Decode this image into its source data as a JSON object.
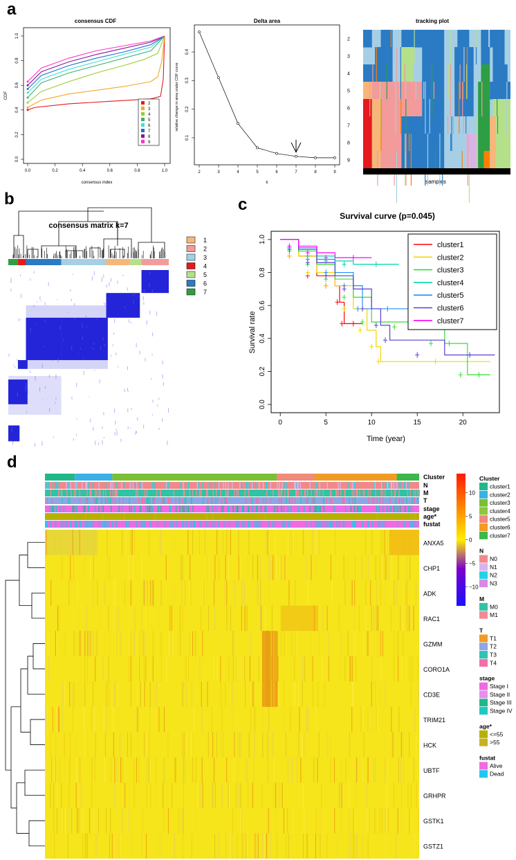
{
  "panel_labels": {
    "a": "a",
    "b": "b",
    "c": "c",
    "d": "d"
  },
  "chart_data": [
    {
      "type": "line",
      "title": "consensus CDF",
      "xlabel": "consensus index",
      "ylabel": "CDF",
      "xticks": [
        "0.0",
        "0.2",
        "0.4",
        "0.6",
        "0.8",
        "1.0"
      ],
      "yticks": [
        "0.0",
        "0.2",
        "0.4",
        "0.6",
        "0.8",
        "1.0"
      ],
      "xlim": [
        0,
        1
      ],
      "ylim": [
        0,
        1
      ],
      "legend_position": "bottom-right",
      "series": [
        {
          "name": "2",
          "color": "#e41a1c",
          "x": [
            0,
            0.05,
            0.3,
            0.6,
            0.9,
            0.97,
            0.99,
            1.0
          ],
          "y": [
            0.4,
            0.42,
            0.45,
            0.47,
            0.49,
            0.51,
            0.65,
            1.0
          ]
        },
        {
          "name": "3",
          "color": "#f5a623",
          "x": [
            0,
            0.1,
            0.3,
            0.5,
            0.7,
            0.9,
            0.95,
            0.98,
            1.0
          ],
          "y": [
            0.42,
            0.48,
            0.53,
            0.56,
            0.59,
            0.63,
            0.67,
            0.8,
            1.0
          ]
        },
        {
          "name": "4",
          "color": "#9acd32",
          "x": [
            0,
            0.1,
            0.3,
            0.5,
            0.7,
            0.85,
            0.95,
            1.0
          ],
          "y": [
            0.46,
            0.55,
            0.63,
            0.7,
            0.76,
            0.81,
            0.86,
            1.0
          ]
        },
        {
          "name": "5",
          "color": "#3cb371",
          "x": [
            0,
            0.1,
            0.3,
            0.5,
            0.7,
            0.9,
            1.0
          ],
          "y": [
            0.5,
            0.62,
            0.7,
            0.76,
            0.82,
            0.88,
            1.0
          ]
        },
        {
          "name": "6",
          "color": "#40e0d0",
          "x": [
            0,
            0.1,
            0.3,
            0.5,
            0.7,
            0.9,
            1.0
          ],
          "y": [
            0.54,
            0.65,
            0.73,
            0.79,
            0.85,
            0.91,
            1.0
          ]
        },
        {
          "name": "7",
          "color": "#1e6fcf",
          "x": [
            0,
            0.1,
            0.3,
            0.5,
            0.7,
            0.9,
            1.0
          ],
          "y": [
            0.57,
            0.68,
            0.76,
            0.82,
            0.87,
            0.93,
            1.0
          ]
        },
        {
          "name": "8",
          "color": "#8b1a8b",
          "x": [
            0,
            0.1,
            0.3,
            0.5,
            0.7,
            0.9,
            1.0
          ],
          "y": [
            0.6,
            0.71,
            0.79,
            0.85,
            0.9,
            0.95,
            1.0
          ]
        },
        {
          "name": "9",
          "color": "#ff33cc",
          "x": [
            0,
            0.1,
            0.3,
            0.5,
            0.7,
            0.9,
            1.0
          ],
          "y": [
            0.63,
            0.74,
            0.82,
            0.88,
            0.92,
            0.96,
            1.0
          ]
        }
      ]
    },
    {
      "type": "line",
      "title": "Delta area",
      "xlabel": "k",
      "ylabel": "relative change in area under CDF curve",
      "x": [
        2,
        3,
        4,
        5,
        6,
        7,
        8,
        9
      ],
      "y": [
        0.47,
        0.31,
        0.15,
        0.065,
        0.045,
        0.035,
        0.03,
        0.03
      ],
      "xlim": [
        2,
        9
      ],
      "ylim": [
        0.02,
        0.48
      ],
      "yticks": [
        "0.1",
        "0.2",
        "0.3",
        "0.4"
      ],
      "annotation": "arrow at k=7"
    },
    {
      "type": "heatmap",
      "title": "tracking plot",
      "xlabel": "samples",
      "rows": [
        "2",
        "3",
        "4",
        "5",
        "6",
        "7",
        "8",
        "9"
      ]
    },
    {
      "type": "heatmap",
      "title": "consensus matrix k=7",
      "legend": [
        "1",
        "2",
        "3",
        "4",
        "5",
        "6",
        "7"
      ],
      "legend_colors": [
        "#f7b67a",
        "#f39a9a",
        "#a6cfe5",
        "#e41a1c",
        "#b5e08a",
        "#2a7bc4",
        "#2e9e44"
      ]
    },
    {
      "type": "line",
      "title": "Survival curve (p=0.045)",
      "xlabel": "Time (year)",
      "ylabel": "Survival rate",
      "xlim": [
        -1,
        24
      ],
      "ylim": [
        -0.05,
        1.05
      ],
      "xticks": [
        0,
        5,
        10,
        15,
        20
      ],
      "yticks": [
        "0.0",
        "0.2",
        "0.4",
        "0.6",
        "0.8",
        "1.0"
      ],
      "legend_position": "top-right",
      "series": [
        {
          "name": "cluster1",
          "color": "#ff0000",
          "x": [
            0,
            2,
            4,
            6,
            6.5,
            7,
            9
          ],
          "y": [
            1,
            0.9,
            0.78,
            0.72,
            0.62,
            0.49,
            0.49
          ]
        },
        {
          "name": "cluster2",
          "color": "#f2d600",
          "x": [
            0,
            2,
            4,
            6,
            8,
            9.5,
            10.5,
            11,
            23
          ],
          "y": [
            1,
            0.9,
            0.8,
            0.72,
            0.58,
            0.45,
            0.35,
            0.26,
            0.26
          ]
        },
        {
          "name": "cluster3",
          "color": "#33dd33",
          "x": [
            0,
            2,
            4,
            6,
            8,
            10,
            15,
            18,
            19,
            20.5,
            23
          ],
          "y": [
            1,
            0.93,
            0.85,
            0.76,
            0.65,
            0.5,
            0.47,
            0.37,
            0.37,
            0.18,
            0.18
          ]
        },
        {
          "name": "cluster4",
          "color": "#00d5a8",
          "x": [
            0,
            2,
            4,
            6,
            8,
            13
          ],
          "y": [
            1,
            0.95,
            0.9,
            0.87,
            0.85,
            0.85
          ]
        },
        {
          "name": "cluster5",
          "color": "#1e90ff",
          "x": [
            0,
            2,
            4,
            6,
            8,
            9,
            14.5
          ],
          "y": [
            1,
            0.95,
            0.88,
            0.8,
            0.72,
            0.58,
            0.58
          ]
        },
        {
          "name": "cluster6",
          "color": "#5b3fd4",
          "x": [
            0,
            2,
            4,
            6,
            8,
            10,
            11,
            12,
            18,
            23.5
          ],
          "y": [
            1,
            0.94,
            0.86,
            0.78,
            0.7,
            0.58,
            0.48,
            0.39,
            0.3,
            0.3
          ]
        },
        {
          "name": "cluster7",
          "color": "#ff00ff",
          "x": [
            0,
            2,
            4,
            6,
            10
          ],
          "y": [
            1,
            0.96,
            0.92,
            0.89,
            0.89
          ]
        }
      ]
    },
    {
      "type": "heatmap",
      "annotation_tracks": [
        "Cluster",
        "N",
        "M",
        "T",
        "stage",
        "age*",
        "fustat"
      ],
      "genes": [
        "ANXA5",
        "CHP1",
        "ADK",
        "RAC1",
        "GZMM",
        "CORO1A",
        "CD3E",
        "TRIM21",
        "HCK",
        "UBTF",
        "GRHPR",
        "GSTK1",
        "GSTZ1"
      ],
      "colorbar_ticks": [
        "10",
        "5",
        "0",
        "−5",
        "−10"
      ],
      "colorbar_range": [
        -14,
        14
      ],
      "legends": [
        {
          "title": "Cluster",
          "items": [
            {
              "label": "cluster1",
              "color": "#20b88a"
            },
            {
              "label": "cluster2",
              "color": "#3ab0e6"
            },
            {
              "label": "cluster3",
              "color": "#7bbf34"
            },
            {
              "label": "cluster4",
              "color": "#8dc63f"
            },
            {
              "label": "cluster5",
              "color": "#f08a7a"
            },
            {
              "label": "cluster6",
              "color": "#f29b24"
            },
            {
              "label": "cluster7",
              "color": "#3cb84a"
            }
          ]
        },
        {
          "title": "N",
          "items": [
            {
              "label": "N0",
              "color": "#f08a8a"
            },
            {
              "label": "N1",
              "color": "#d9b3f0"
            },
            {
              "label": "N2",
              "color": "#22d3e6"
            },
            {
              "label": "N3",
              "color": "#d98ae6"
            }
          ]
        },
        {
          "title": "M",
          "items": [
            {
              "label": "M0",
              "color": "#2fc4a4"
            },
            {
              "label": "M1",
              "color": "#f28a96"
            }
          ]
        },
        {
          "title": "T",
          "items": [
            {
              "label": "T1",
              "color": "#f29b24"
            },
            {
              "label": "T2",
              "color": "#8ea6e8"
            },
            {
              "label": "T3",
              "color": "#2fc4b4"
            },
            {
              "label": "T4",
              "color": "#f26fa6"
            }
          ]
        },
        {
          "title": "stage",
          "items": [
            {
              "label": "Stage I",
              "color": "#f06ae6"
            },
            {
              "label": "Stage II",
              "color": "#e88ef0"
            },
            {
              "label": "Stage III",
              "color": "#20b88a"
            },
            {
              "label": "Stage IV",
              "color": "#20c8c4"
            }
          ]
        },
        {
          "title": "age*",
          "items": [
            {
              "label": "<=55",
              "color": "#b8b000"
            },
            {
              "label": ">55",
              "color": "#c8b020"
            }
          ]
        },
        {
          "title": "fustat",
          "items": [
            {
              "label": "Alive",
              "color": "#f06ae0"
            },
            {
              "label": "Dead",
              "color": "#22c6f0"
            }
          ]
        }
      ]
    }
  ]
}
